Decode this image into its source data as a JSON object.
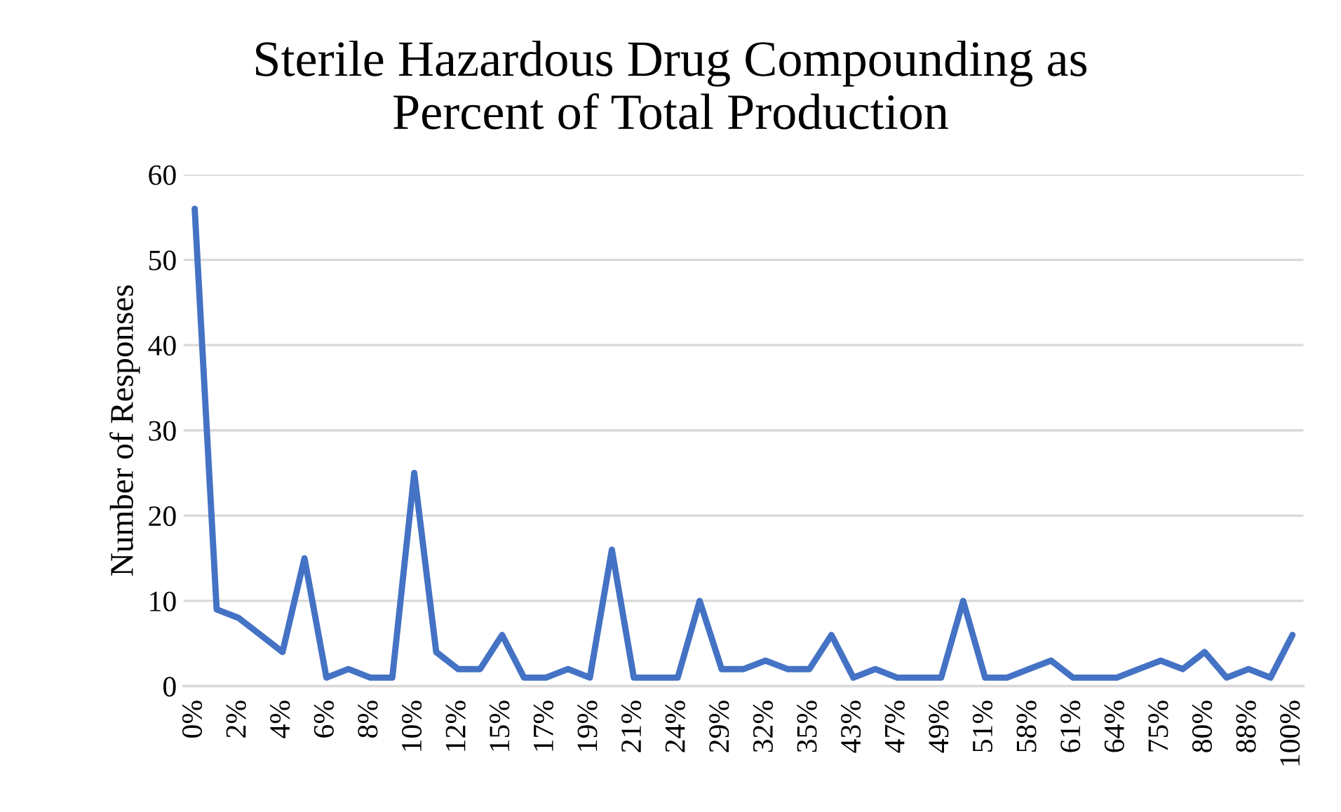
{
  "chart_data": {
    "type": "line",
    "title": "Sterile Hazardous Drug Compounding as\nPercent of Total Production",
    "ylabel": "Number of Responses",
    "categories": [
      "0%",
      null,
      "2%",
      null,
      "4%",
      null,
      "6%",
      null,
      "8%",
      null,
      "10%",
      null,
      "12%",
      null,
      "15%",
      null,
      "17%",
      null,
      "19%",
      null,
      "21%",
      null,
      "24%",
      null,
      "29%",
      null,
      "32%",
      null,
      "35%",
      null,
      "43%",
      null,
      "47%",
      null,
      "49%",
      null,
      "51%",
      null,
      "58%",
      null,
      "61%",
      null,
      "64%",
      null,
      "75%",
      null,
      "80%",
      null,
      "88%",
      null,
      "100%"
    ],
    "series": [
      {
        "color": "#4472c4",
        "values": [
          56,
          9,
          8,
          6,
          4,
          15,
          1,
          2,
          1,
          1,
          25,
          4,
          2,
          2,
          6,
          1,
          1,
          2,
          1,
          16,
          1,
          1,
          1,
          10,
          2,
          2,
          3,
          2,
          2,
          6,
          1,
          2,
          1,
          1,
          1,
          10,
          1,
          1,
          2,
          3,
          1,
          1,
          1,
          2,
          3,
          2,
          4,
          1,
          2,
          1,
          6
        ]
      }
    ],
    "ylim": [
      0,
      60
    ],
    "yticks": [
      0,
      10,
      20,
      30,
      40,
      50,
      60
    ],
    "grid": "y",
    "marker": "none",
    "line_style": "solid"
  }
}
